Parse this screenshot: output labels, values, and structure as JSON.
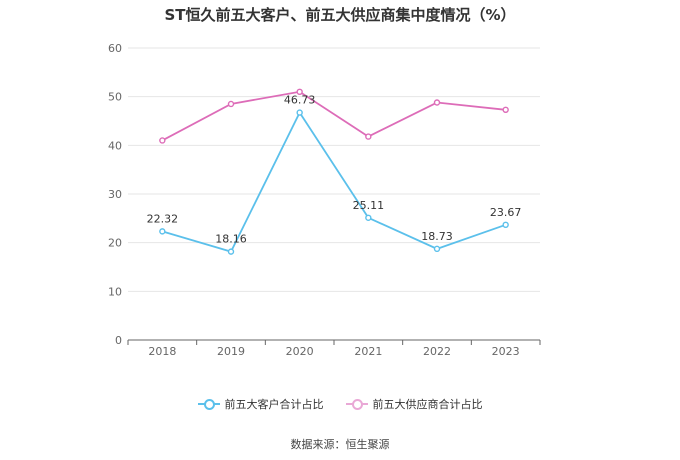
{
  "chart_data": {
    "type": "line",
    "title": "ST恒久前五大客户、前五大供应商集中度情况（%）",
    "categories": [
      "2018",
      "2019",
      "2020",
      "2021",
      "2022",
      "2023"
    ],
    "ylim": [
      0,
      60
    ],
    "yticks": [
      0,
      10,
      20,
      30,
      40,
      50,
      60
    ],
    "grid": true,
    "legend_position": "bottom",
    "series": [
      {
        "name": "前五大客户合计占比",
        "values": [
          22.32,
          18.16,
          46.73,
          25.11,
          18.73,
          23.67
        ],
        "labels": [
          "22.32",
          "18.16",
          "46.73",
          "25.11",
          "18.73",
          "23.67"
        ],
        "color": "#5bc0eb"
      },
      {
        "name": "前五大供应商合计占比",
        "values": [
          41.0,
          48.5,
          51.0,
          41.8,
          48.8,
          47.3
        ],
        "color": "#dd6cb8"
      }
    ]
  },
  "source": "数据来源：恒生聚源"
}
